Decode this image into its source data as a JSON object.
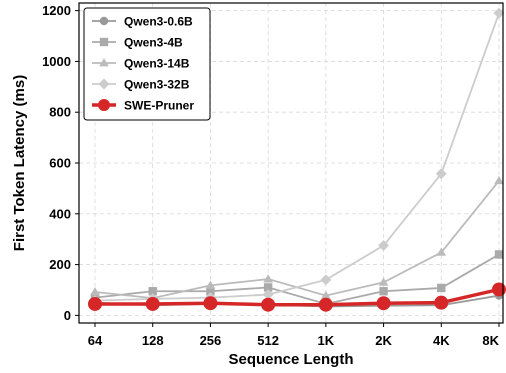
{
  "chart_data": {
    "type": "line",
    "title": "",
    "xlabel": "Sequence Length",
    "ylabel": "First Token Latency (ms)",
    "categories": [
      "64",
      "128",
      "256",
      "512",
      "1K",
      "2K",
      "4K",
      "8K"
    ],
    "yticks": [
      "0",
      "200",
      "400",
      "600",
      "800",
      "1000",
      "1200"
    ],
    "ylim": [
      -30,
      1230
    ],
    "grid": true,
    "legend_position": "top-left",
    "series": [
      {
        "name": "Qwen3-0.6B",
        "marker": "circle",
        "color": "#999999",
        "values": [
          50,
          40,
          45,
          42,
          35,
          38,
          40,
          78
        ]
      },
      {
        "name": "Qwen3-4B",
        "marker": "square",
        "color": "#aaaaaa",
        "values": [
          70,
          95,
          95,
          110,
          45,
          95,
          108,
          240
        ]
      },
      {
        "name": "Qwen3-14B",
        "marker": "triangle",
        "color": "#bbbbbb",
        "values": [
          92,
          68,
          118,
          143,
          78,
          130,
          248,
          530
        ]
      },
      {
        "name": "Qwen3-32B",
        "marker": "diamond",
        "color": "#cccccc",
        "values": [
          58,
          65,
          70,
          82,
          140,
          275,
          558,
          1190
        ]
      },
      {
        "name": "SWE-Pruner",
        "marker": "circle",
        "color": "#d62728",
        "values": [
          45,
          45,
          48,
          42,
          42,
          48,
          50,
          102
        ]
      }
    ]
  }
}
